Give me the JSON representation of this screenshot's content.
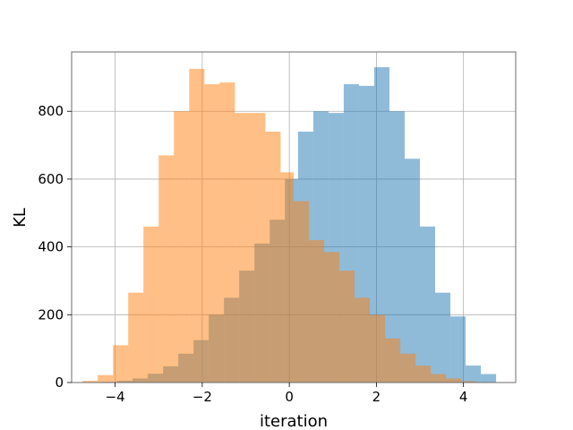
{
  "chart_data": {
    "type": "histogram",
    "title": "",
    "xlabel": "iteration",
    "ylabel": "KL",
    "xlim": [
      -5.0,
      5.2
    ],
    "ylim": [
      0,
      975
    ],
    "grid": true,
    "x_ticks": [
      -4,
      -2,
      0,
      2,
      4
    ],
    "x_tick_labels": [
      "−4",
      "−2",
      "0",
      "2",
      "4"
    ],
    "y_ticks": [
      0,
      200,
      400,
      600,
      800
    ],
    "y_tick_labels": [
      "0",
      "200",
      "400",
      "600",
      "800"
    ],
    "series": [
      {
        "color": "#1f77b4",
        "alpha": 0.5,
        "bin_edges": [
          -4.3,
          -3.95,
          -3.6,
          -3.25,
          -2.9,
          -2.55,
          -2.2,
          -1.85,
          -1.5,
          -1.15,
          -0.8,
          -0.45,
          -0.1,
          0.2,
          0.55,
          0.9,
          1.25,
          1.6,
          1.95,
          2.3,
          2.65,
          3.0,
          3.35,
          3.7,
          4.05,
          4.4,
          4.75
        ],
        "counts": [
          2,
          5,
          12,
          26,
          48,
          85,
          125,
          200,
          250,
          330,
          410,
          480,
          600,
          740,
          800,
          795,
          880,
          875,
          930,
          800,
          660,
          460,
          265,
          195,
          50,
          25
        ]
      },
      {
        "color": "#ff7f0e",
        "alpha": 0.5,
        "bin_edges": [
          -4.75,
          -4.4,
          -4.05,
          -3.7,
          -3.35,
          -3.0,
          -2.65,
          -2.3,
          -1.95,
          -1.6,
          -1.25,
          -0.9,
          -0.55,
          -0.2,
          0.1,
          0.45,
          0.8,
          1.15,
          1.5,
          1.85,
          2.2,
          2.55,
          2.9,
          3.25,
          3.6,
          3.95,
          4.3
        ],
        "counts": [
          5,
          22,
          110,
          265,
          460,
          670,
          800,
          925,
          880,
          885,
          795,
          795,
          740,
          620,
          535,
          420,
          385,
          330,
          250,
          200,
          130,
          85,
          50,
          25,
          12,
          4
        ]
      }
    ]
  }
}
